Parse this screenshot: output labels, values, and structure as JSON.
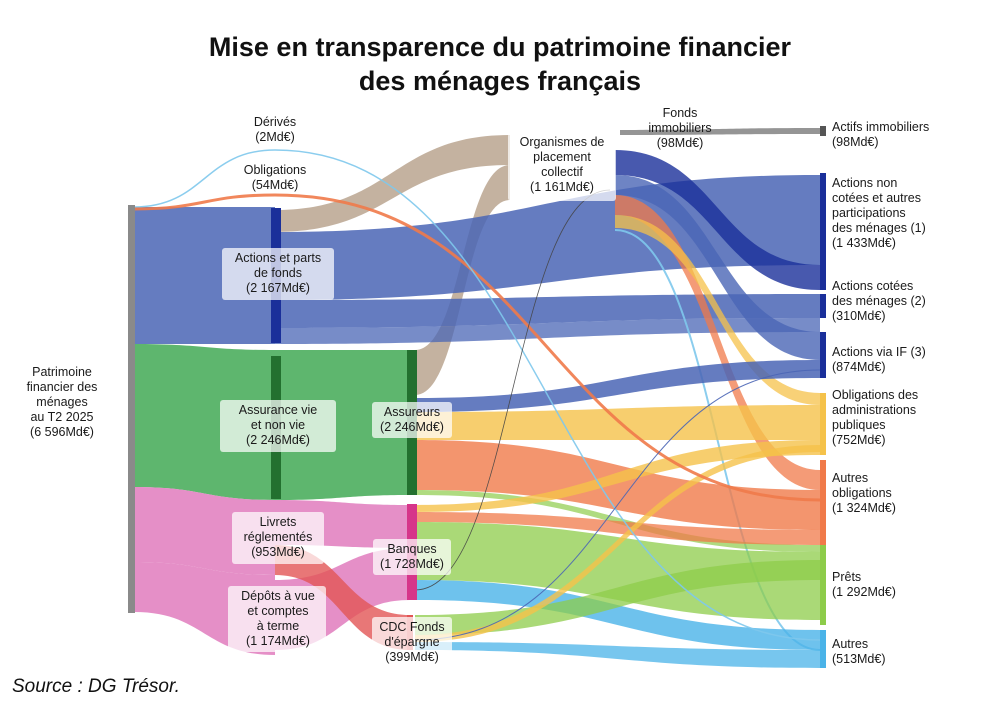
{
  "title": {
    "line1": "Mise en transparence du patrimoine financier",
    "line2": "des ménages français"
  },
  "source": "Source : DG Trésor.",
  "colors": {
    "actions": "#4a65b5",
    "assurance": "#42a955",
    "livrets": "#e07bbd",
    "opc": "#b09880",
    "derives": "#7ec8ec",
    "obligations": "#f07a4a",
    "fonds_immo": "#8a8a8a",
    "prets": "#8dcc4a",
    "oblig_pub": "#f5c24a",
    "autres": "#4ab3e8",
    "cdc": "#e25555",
    "root": "#8a8a8a",
    "actions_bar": "#1a2f9a",
    "assurance_bar": "#23702f",
    "banques_bar": "#d6358a"
  },
  "nodes": {
    "root": [
      "Patrimoine",
      "financier des",
      "ménages",
      "au T2 2025",
      "(6 596Md€)"
    ],
    "derives": [
      "Dérivés",
      "(2Md€)"
    ],
    "obligations": [
      "Obligations",
      "(54Md€)"
    ],
    "actions_parts": [
      "Actions et parts",
      "de fonds",
      "(2 167Md€)"
    ],
    "assurance_vie": [
      "Assurance vie",
      "et non vie",
      "(2 246Md€)"
    ],
    "livrets": [
      "Livrets",
      "réglementés",
      "(953Md€)"
    ],
    "depots": [
      "Dépôts à vue",
      "et comptes",
      "à terme",
      "(1 174Md€)"
    ],
    "opc": [
      "Organismes de",
      "placement",
      "collectif",
      "(1 161Md€)"
    ],
    "fonds_immo": [
      "Fonds",
      "immobiliers",
      "(98Md€)"
    ],
    "assureurs": [
      "Assureurs",
      "(2 246Md€)"
    ],
    "banques": [
      "Banques",
      "(1 728Md€)"
    ],
    "cdc": [
      "CDC Fonds",
      "d'épargne",
      "(399Md€)"
    ],
    "actifs_immo": [
      "Actifs immobiliers",
      "(98Md€)"
    ],
    "actions_non_cotees": [
      "Actions non",
      "cotées et autres",
      "participations",
      "des ménages (1)",
      "(1 433Md€)"
    ],
    "actions_cotees": [
      "Actions cotées",
      "des ménages (2)",
      "(310Md€)"
    ],
    "actions_if": [
      "Actions via IF (3)",
      "(874Md€)"
    ],
    "oblig_admin": [
      "Obligations des",
      "administrations",
      "publiques",
      "(752Md€)"
    ],
    "autres_oblig": [
      "Autres",
      "obligations",
      "(1 324Md€)"
    ],
    "prets": [
      "Prêts",
      "(1 292Md€)"
    ],
    "autres": [
      "Autres",
      "(513Md€)"
    ]
  }
}
